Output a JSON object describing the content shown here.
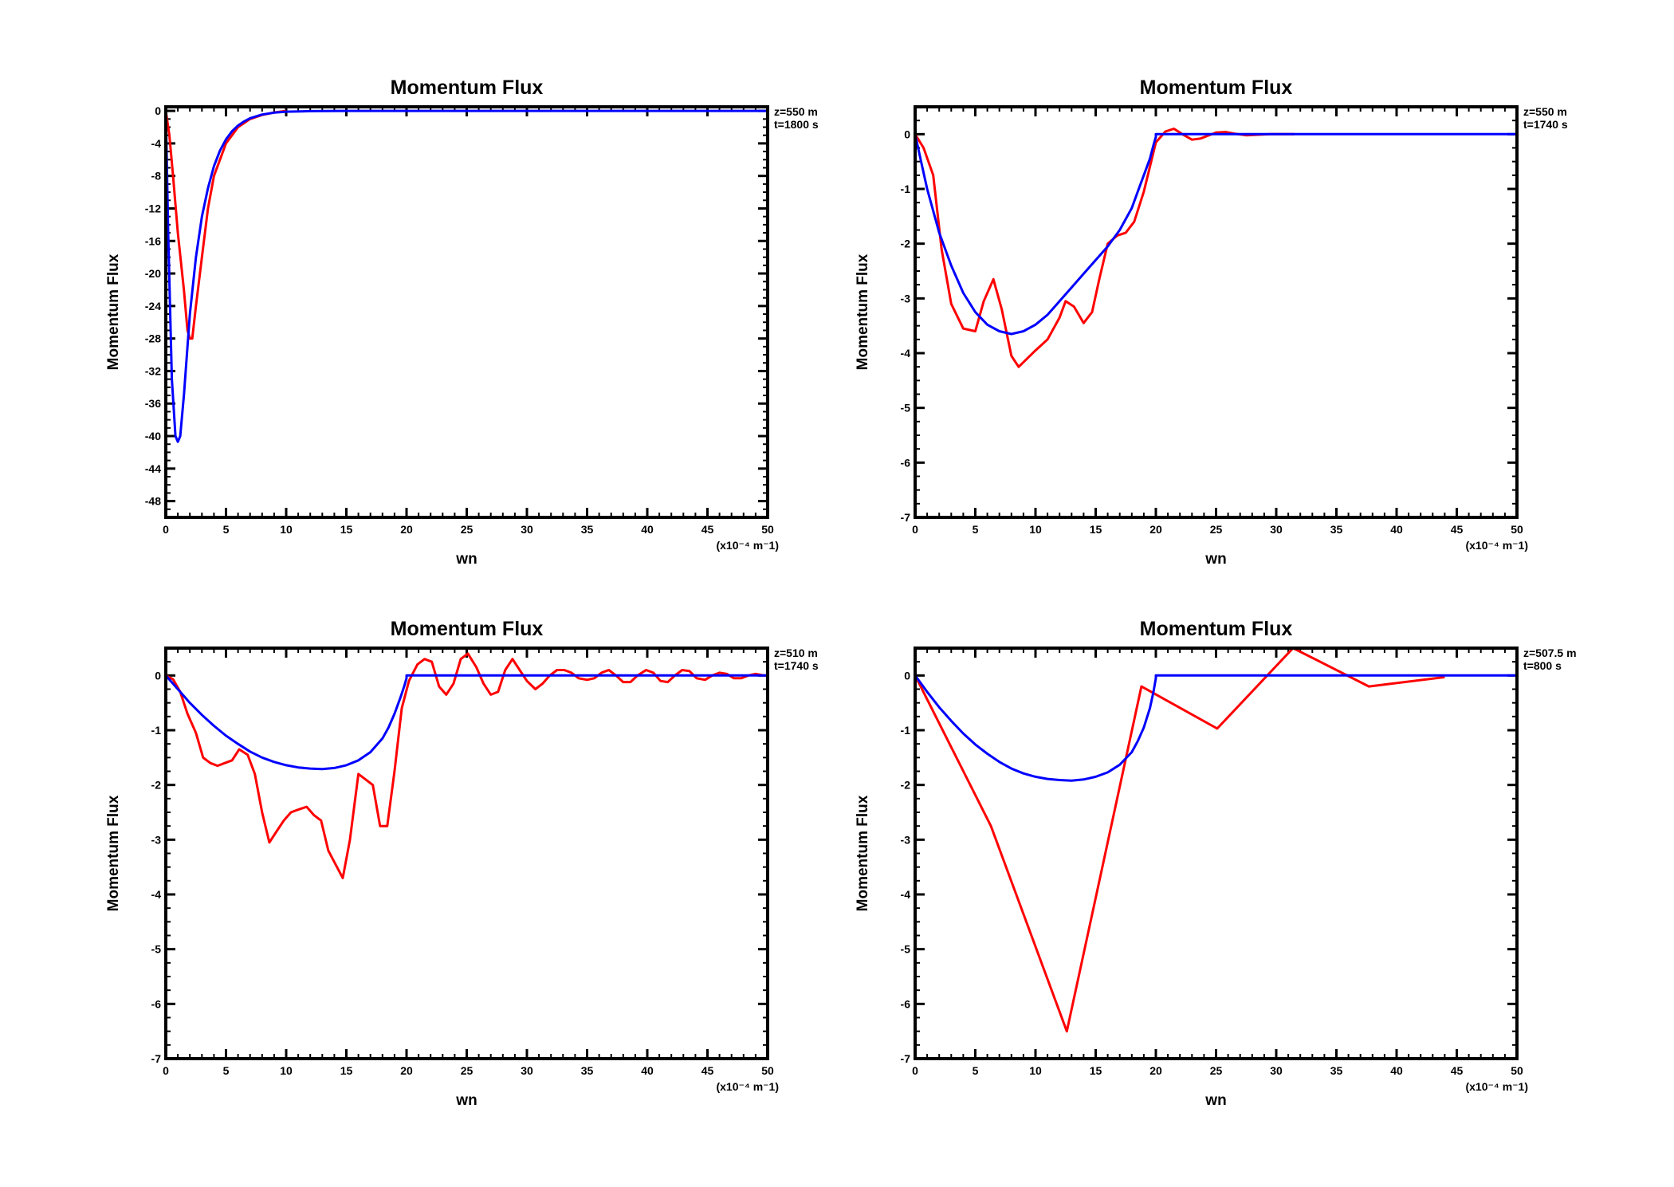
{
  "figure": {
    "colors": {
      "simulated": "#ff0000",
      "theoretical": "#0000ff",
      "axes": "#000000"
    }
  },
  "chart_data": [
    {
      "type": "line",
      "title": "Momentum Flux",
      "xlabel": "wn",
      "ylabel": "Momentum Flux",
      "x_unit": "(x10⁻⁴ m⁻1)",
      "info_line1": "z=550  m",
      "info_line2": "t=1800  s",
      "xlim": [
        0,
        50
      ],
      "ylim": [
        -50,
        0.5
      ],
      "xticks": [
        0,
        5,
        10,
        15,
        20,
        25,
        30,
        35,
        40,
        45,
        50
      ],
      "xtick_labels": [
        "0",
        "5",
        "10",
        "15",
        "20",
        "25",
        "30",
        "35",
        "40",
        "45",
        "50"
      ],
      "yticks": [
        0,
        -4,
        -8,
        -12,
        -16,
        -20,
        -24,
        -28,
        -32,
        -36,
        -40,
        -44,
        -48
      ],
      "ytick_labels": [
        "0",
        "-4",
        "-8",
        "-12",
        "-16",
        "-20",
        "-24",
        "-28",
        "-32",
        "-36",
        "-40",
        "-44",
        "-48"
      ],
      "series": [
        {
          "color": "#ff0000",
          "x": [
            0,
            0.3,
            0.6,
            1.0,
            1.5,
            1.8,
            2.0,
            2.2,
            2.5,
            3.0,
            3.5,
            4.0,
            5.0,
            6.0,
            7.0,
            8.0,
            9.0,
            10.0
          ],
          "y": [
            0,
            -3,
            -8,
            -15,
            -22,
            -27,
            -28,
            -28,
            -24,
            -18,
            -12,
            -8,
            -4,
            -2,
            -1,
            -0.5,
            -0.2,
            0
          ]
        },
        {
          "color": "#0000ff",
          "x": [
            0,
            0.2,
            0.5,
            0.8,
            1.0,
            1.2,
            1.5,
            2.0,
            2.5,
            3.0,
            3.5,
            4.0,
            4.5,
            5.0,
            5.5,
            6.0,
            6.5,
            7.0,
            8.0,
            9.0,
            10.0,
            12.0,
            15.0,
            20.0,
            30.0,
            40.0,
            50.0
          ],
          "y": [
            0,
            -15,
            -33,
            -40,
            -40.7,
            -40,
            -35,
            -25,
            -18,
            -13,
            -9.5,
            -6.8,
            -4.9,
            -3.5,
            -2.5,
            -1.8,
            -1.3,
            -0.9,
            -0.45,
            -0.22,
            -0.1,
            -0.03,
            0,
            0,
            0,
            0,
            0
          ]
        }
      ]
    },
    {
      "type": "line",
      "title": "Momentum Flux",
      "xlabel": "wn",
      "ylabel": "Momentum Flux",
      "x_unit": "(x10⁻⁴ m⁻1)",
      "info_line1": "z=550  m",
      "info_line2": "t=1740  s",
      "xlim": [
        0,
        50
      ],
      "ylim": [
        -7,
        0.5
      ],
      "xticks": [
        0,
        5,
        10,
        15,
        20,
        25,
        30,
        35,
        40,
        45,
        50
      ],
      "xtick_labels": [
        "0",
        "5",
        "10",
        "15",
        "20",
        "25",
        "30",
        "35",
        "40",
        "45",
        "50"
      ],
      "yticks": [
        0,
        -1,
        -2,
        -3,
        -4,
        -5,
        -6,
        -7
      ],
      "ytick_labels": [
        "0",
        "-1",
        "-2",
        "-3",
        "-4",
        "-5",
        "-6",
        "-7"
      ],
      "series": [
        {
          "color": "#ff0000",
          "x": [
            0,
            0.7,
            1.5,
            2.2,
            3.0,
            4.0,
            5.0,
            5.7,
            6.5,
            7.2,
            8.0,
            8.6,
            9.3,
            10.0,
            11.0,
            12.0,
            12.5,
            13.2,
            14.0,
            14.7,
            15.3,
            16.0,
            16.8,
            17.5,
            18.2,
            19.0,
            20.0,
            20.8,
            21.5,
            22.2,
            23.0,
            23.7,
            24.3,
            25.0,
            25.8,
            26.5,
            27.5,
            28.5,
            29.5,
            30.5,
            31.5
          ],
          "y": [
            0,
            -0.25,
            -0.75,
            -2.1,
            -3.1,
            -3.55,
            -3.6,
            -3.05,
            -2.65,
            -3.2,
            -4.05,
            -4.25,
            -4.1,
            -3.95,
            -3.75,
            -3.35,
            -3.05,
            -3.15,
            -3.45,
            -3.25,
            -2.65,
            -2.0,
            -1.85,
            -1.8,
            -1.6,
            -1.05,
            -0.15,
            0.05,
            0.1,
            0.0,
            -0.1,
            -0.08,
            -0.03,
            0.03,
            0.04,
            0.01,
            -0.02,
            -0.01,
            0.0,
            0.0,
            0.0
          ]
        },
        {
          "color": "#0000ff",
          "x": [
            0,
            0.5,
            1.0,
            2.0,
            3.0,
            4.0,
            5.0,
            6.0,
            7.0,
            8.0,
            9.0,
            10.0,
            11.0,
            12.0,
            13.0,
            14.0,
            15.0,
            16.0,
            17.0,
            18.0,
            18.5,
            19.0,
            19.5,
            19.8,
            20.0,
            20.0,
            25.0,
            30.0,
            35.0,
            40.0,
            45.0,
            50.0
          ],
          "y": [
            0,
            -0.5,
            -1.0,
            -1.8,
            -2.4,
            -2.9,
            -3.25,
            -3.48,
            -3.6,
            -3.65,
            -3.6,
            -3.48,
            -3.3,
            -3.05,
            -2.8,
            -2.55,
            -2.3,
            -2.05,
            -1.75,
            -1.35,
            -1.05,
            -0.75,
            -0.45,
            -0.2,
            -0.05,
            0,
            0,
            0,
            0,
            0,
            0,
            0
          ]
        }
      ]
    },
    {
      "type": "line",
      "title": "Momentum Flux",
      "xlabel": "wn",
      "ylabel": "Momentum Flux",
      "x_unit": "(x10⁻⁴ m⁻1)",
      "info_line1": "z=510  m",
      "info_line2": "t=1740  s",
      "xlim": [
        0,
        50
      ],
      "ylim": [
        -7,
        0.5
      ],
      "xticks": [
        0,
        5,
        10,
        15,
        20,
        25,
        30,
        35,
        40,
        45,
        50
      ],
      "xtick_labels": [
        "0",
        "5",
        "10",
        "15",
        "20",
        "25",
        "30",
        "35",
        "40",
        "45",
        "50"
      ],
      "yticks": [
        0,
        -1,
        -2,
        -3,
        -4,
        -5,
        -6,
        -7
      ],
      "ytick_labels": [
        "0",
        "-1",
        "-2",
        "-3",
        "-4",
        "-5",
        "-6",
        "-7"
      ],
      "series": [
        {
          "color": "#ff0000",
          "x": [
            0,
            0.6,
            1.2,
            1.8,
            2.5,
            3.1,
            3.7,
            4.3,
            4.9,
            5.5,
            6.1,
            6.8,
            7.4,
            8.0,
            8.6,
            9.2,
            9.8,
            10.4,
            11.0,
            11.7,
            12.3,
            12.9,
            13.5,
            14.1,
            14.7,
            15.3,
            16.0,
            16.6,
            17.2,
            17.8,
            18.4,
            19.0,
            19.6,
            20.2,
            20.9,
            21.5,
            22.1,
            22.7,
            23.3,
            23.9,
            24.5,
            25.1,
            25.8,
            26.4,
            27.0,
            27.6,
            28.2,
            28.8,
            29.4,
            30.0,
            30.7,
            31.3,
            31.9,
            32.5,
            33.1,
            33.7,
            34.3,
            35.0,
            35.6,
            36.2,
            36.8,
            37.4,
            38.0,
            38.6,
            39.2,
            39.9,
            40.5,
            41.1,
            41.7,
            42.3,
            42.9,
            43.5,
            44.1,
            44.8,
            45.4,
            46.0,
            46.6,
            47.2,
            47.8,
            48.4,
            49.0,
            49.7,
            50.0
          ],
          "y": [
            0,
            -0.07,
            -0.3,
            -0.7,
            -1.05,
            -1.5,
            -1.6,
            -1.65,
            -1.6,
            -1.55,
            -1.35,
            -1.45,
            -1.8,
            -2.5,
            -3.05,
            -2.85,
            -2.65,
            -2.5,
            -2.45,
            -2.4,
            -2.55,
            -2.65,
            -3.2,
            -3.45,
            -3.7,
            -3.0,
            -1.8,
            -1.9,
            -2.0,
            -2.75,
            -2.75,
            -1.75,
            -0.6,
            -0.1,
            0.2,
            0.3,
            0.25,
            -0.2,
            -0.35,
            -0.15,
            0.3,
            0.4,
            0.15,
            -0.15,
            -0.35,
            -0.3,
            0.1,
            0.3,
            0.1,
            -0.1,
            -0.25,
            -0.15,
            0.0,
            0.1,
            0.1,
            0.05,
            -0.05,
            -0.08,
            -0.05,
            0.05,
            0.1,
            0.0,
            -0.12,
            -0.12,
            0.0,
            0.1,
            0.05,
            -0.1,
            -0.12,
            0.0,
            0.1,
            0.08,
            -0.05,
            -0.08,
            0.0,
            0.05,
            0.03,
            -0.05,
            -0.05,
            0.0,
            0.03,
            0.0,
            0.0
          ]
        },
        {
          "color": "#0000ff",
          "x": [
            0,
            1,
            2,
            3,
            4,
            5,
            6,
            7,
            8,
            9,
            10,
            11,
            12,
            13,
            14,
            15,
            16,
            17,
            18,
            18.5,
            19,
            19.5,
            19.8,
            20.0,
            20.0,
            25,
            30,
            35,
            40,
            45,
            50
          ],
          "y": [
            0,
            -0.25,
            -0.5,
            -0.72,
            -0.92,
            -1.1,
            -1.25,
            -1.39,
            -1.5,
            -1.58,
            -1.64,
            -1.68,
            -1.7,
            -1.71,
            -1.69,
            -1.64,
            -1.55,
            -1.4,
            -1.15,
            -0.95,
            -0.7,
            -0.4,
            -0.2,
            -0.05,
            0,
            0,
            0,
            0,
            0,
            0,
            0
          ]
        }
      ]
    },
    {
      "type": "line",
      "title": "Momentum Flux",
      "xlabel": "wn",
      "ylabel": "Momentum Flux",
      "x_unit": "(x10⁻⁴ m⁻1)",
      "info_line1": "z=507.5  m",
      "info_line2": "t=800  s",
      "xlim": [
        0,
        50
      ],
      "ylim": [
        -7,
        0.5
      ],
      "xticks": [
        0,
        5,
        10,
        15,
        20,
        25,
        30,
        35,
        40,
        45,
        50
      ],
      "xtick_labels": [
        "0",
        "5",
        "10",
        "15",
        "20",
        "25",
        "30",
        "35",
        "40",
        "45",
        "50"
      ],
      "yticks": [
        0,
        -1,
        -2,
        -3,
        -4,
        -5,
        -6,
        -7
      ],
      "ytick_labels": [
        "0",
        "-1",
        "-2",
        "-3",
        "-4",
        "-5",
        "-6",
        "-7"
      ],
      "series": [
        {
          "color": "#ff0000",
          "x": [
            0,
            6.3,
            12.6,
            18.8,
            25.1,
            31.4,
            37.7,
            44.0
          ],
          "y": [
            0,
            -2.75,
            -6.5,
            -0.2,
            -0.97,
            0.5,
            -0.2,
            -0.03
          ]
        },
        {
          "color": "#0000ff",
          "x": [
            0,
            1,
            2,
            3,
            4,
            5,
            6,
            7,
            8,
            9,
            10,
            11,
            12,
            13,
            14,
            15,
            16,
            17,
            18,
            18.5,
            19,
            19.5,
            19.8,
            20.0,
            20.0,
            25,
            30,
            35,
            40,
            45,
            50
          ],
          "y": [
            0,
            -0.3,
            -0.58,
            -0.83,
            -1.06,
            -1.26,
            -1.43,
            -1.58,
            -1.7,
            -1.79,
            -1.85,
            -1.89,
            -1.91,
            -1.92,
            -1.9,
            -1.85,
            -1.77,
            -1.63,
            -1.4,
            -1.2,
            -0.95,
            -0.6,
            -0.3,
            -0.05,
            0,
            0,
            0,
            0,
            0,
            0,
            0
          ]
        }
      ]
    }
  ]
}
